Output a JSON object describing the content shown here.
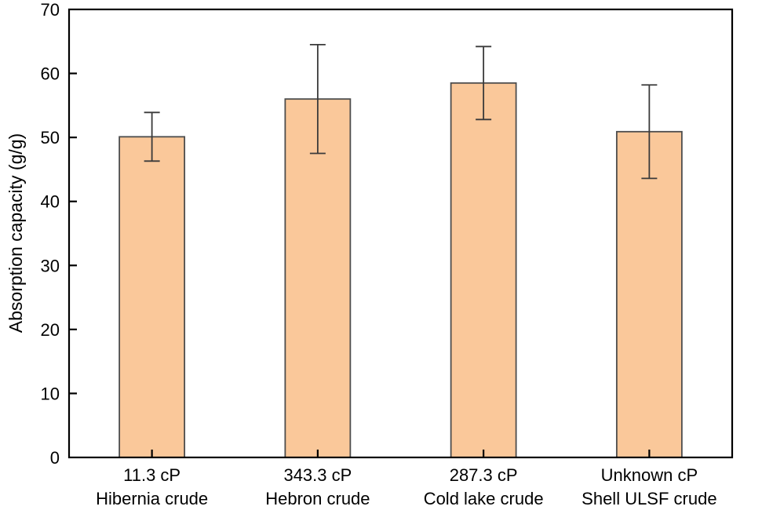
{
  "chart_data": {
    "type": "bar",
    "title": "",
    "xlabel": "",
    "ylabel": "Absorption capacity (g/g)",
    "ylim": [
      0,
      70
    ],
    "ytick_step": 10,
    "yticks": [
      0,
      10,
      20,
      30,
      40,
      50,
      60,
      70
    ],
    "grid": false,
    "legend": "none",
    "categories": [
      {
        "viscosity": "11.3 cP",
        "name": "Hibernia crude"
      },
      {
        "viscosity": "343.3 cP",
        "name": "Hebron crude"
      },
      {
        "viscosity": "287.3 cP",
        "name": "Cold lake crude"
      },
      {
        "viscosity": "Unknown cP",
        "name": "Shell ULSF crude"
      }
    ],
    "series": [
      {
        "name": "Absorption capacity",
        "values": [
          50.1,
          56.0,
          58.5,
          50.9
        ],
        "error_bars": [
          3.8,
          8.5,
          5.7,
          7.3
        ]
      }
    ],
    "colors": {
      "bar_fill": "#FAC89A",
      "bar_border": "#4D4D4D",
      "error_bar": "#3A3A3A",
      "axis": "#000000",
      "background": "#FFFFFF"
    }
  }
}
